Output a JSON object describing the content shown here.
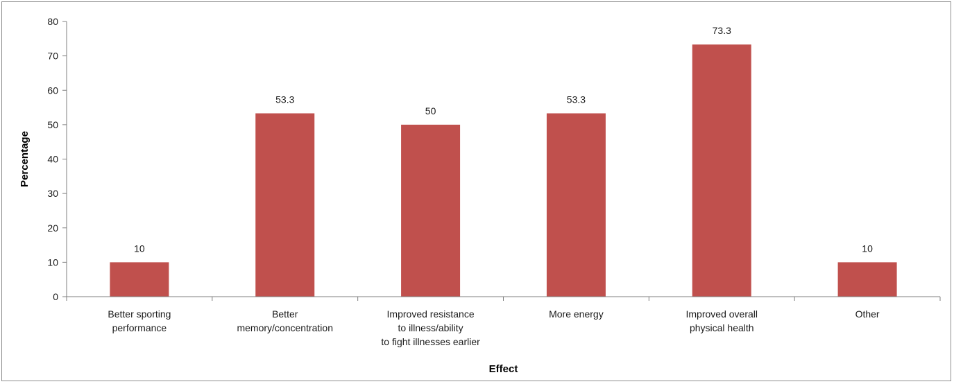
{
  "chart_data": {
    "type": "bar",
    "categories": [
      [
        "Better sporting",
        "performance"
      ],
      [
        "Better",
        "memory/concentration"
      ],
      [
        "Improved resistance",
        "to  illness/ability",
        "to fight illnesses earlier"
      ],
      [
        "More energy"
      ],
      [
        "Improved overall",
        "physical health"
      ],
      [
        "Other"
      ]
    ],
    "values": [
      10,
      53.3,
      50,
      53.3,
      73.3,
      10
    ],
    "data_labels": [
      "10",
      "53.3",
      "50",
      "53.3",
      "73.3",
      "10"
    ],
    "xlabel": "Effect",
    "ylabel": "Percentage",
    "ylim": [
      0,
      80
    ],
    "yticks": [
      0,
      10,
      20,
      30,
      40,
      50,
      60,
      70,
      80
    ],
    "grid": false,
    "bar_color": "#c0504d"
  }
}
